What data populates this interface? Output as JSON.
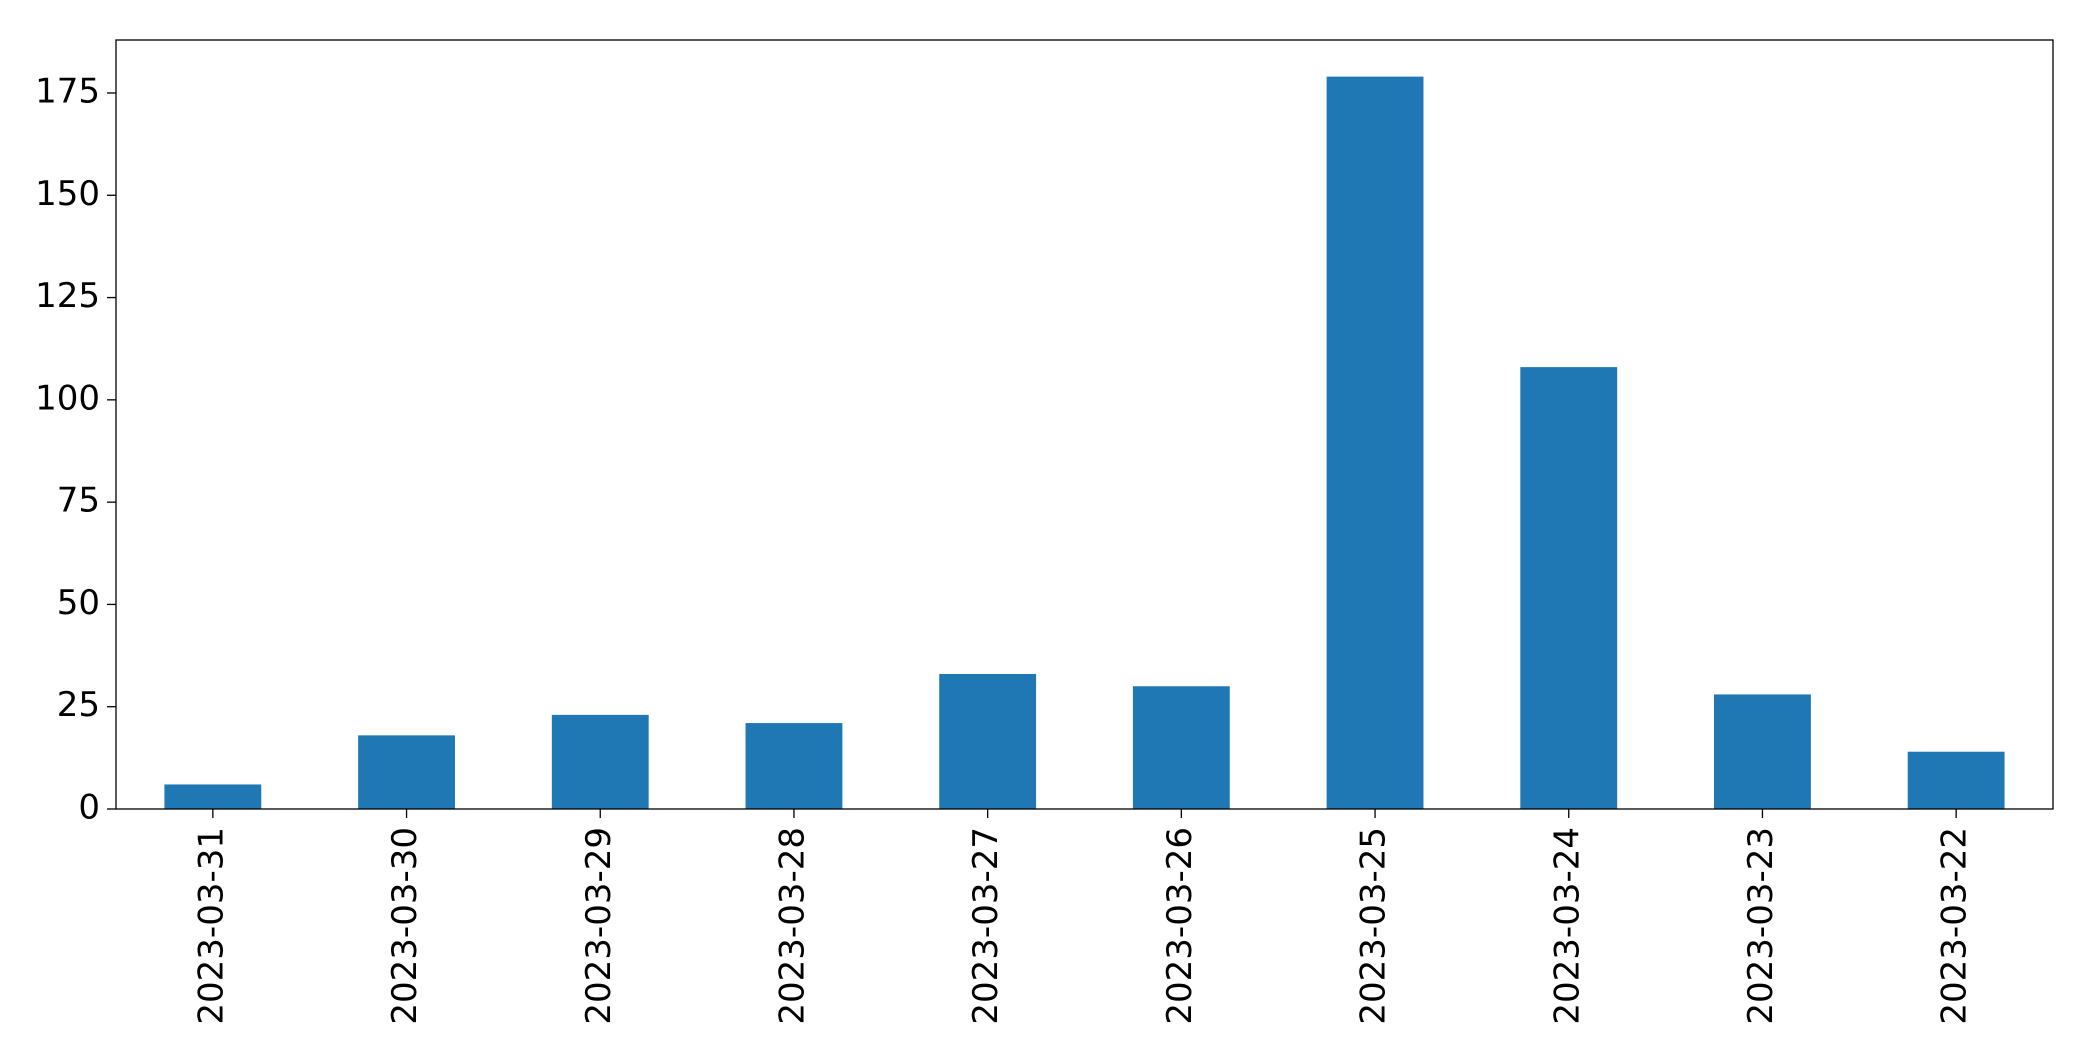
{
  "chart_data": {
    "type": "bar",
    "categories": [
      "2023-03-31",
      "2023-03-30",
      "2023-03-29",
      "2023-03-28",
      "2023-03-27",
      "2023-03-26",
      "2023-03-25",
      "2023-03-24",
      "2023-03-23",
      "2023-03-22"
    ],
    "values": [
      6,
      18,
      23,
      21,
      33,
      30,
      179,
      108,
      28,
      14
    ],
    "color": "#1f77b4",
    "ylim": [
      0,
      187.95
    ],
    "yticks": [
      0,
      25,
      50,
      75,
      100,
      125,
      150,
      175
    ],
    "grid": false
  }
}
